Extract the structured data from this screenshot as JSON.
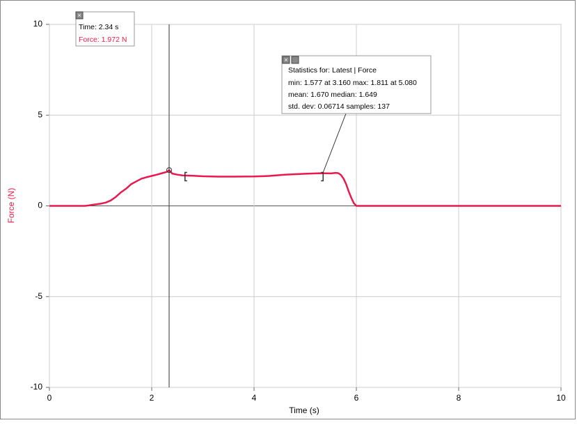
{
  "chart_data": {
    "type": "line",
    "x_label": "Time (s)",
    "y_label": "Force (N)",
    "x": [
      0,
      0.4,
      0.7,
      0.9,
      1.0,
      1.1,
      1.2,
      1.3,
      1.4,
      1.5,
      1.6,
      1.7,
      1.8,
      1.9,
      2.0,
      2.1,
      2.2,
      2.3,
      2.34,
      2.4,
      2.5,
      2.6,
      2.8,
      3.0,
      3.3,
      3.6,
      4.0,
      4.3,
      4.6,
      5.0,
      5.3,
      5.5,
      5.6,
      5.65,
      5.7,
      5.75,
      5.8,
      5.85,
      5.9,
      5.95,
      6.0,
      7.0,
      8.0,
      9.0,
      10.0
    ],
    "series": [
      {
        "color": "#e8194c",
        "values": [
          0,
          0,
          0,
          0.08,
          0.12,
          0.18,
          0.3,
          0.5,
          0.75,
          0.95,
          1.2,
          1.35,
          1.5,
          1.58,
          1.65,
          1.72,
          1.8,
          1.88,
          1.97,
          1.78,
          1.72,
          1.68,
          1.66,
          1.63,
          1.61,
          1.61,
          1.62,
          1.65,
          1.72,
          1.77,
          1.8,
          1.79,
          1.82,
          1.8,
          1.7,
          1.5,
          1.2,
          0.8,
          0.45,
          0.15,
          0,
          0,
          0,
          0,
          0
        ]
      }
    ],
    "xlim": [
      0,
      10
    ],
    "xticks": [
      0,
      2,
      4,
      6,
      8,
      10
    ],
    "ylim": [
      -10,
      10
    ],
    "yticks": [
      -10,
      -5,
      0,
      5,
      10
    ],
    "grid": true,
    "cursor": {
      "x": 2.34,
      "y": 1.972,
      "time_label": "Time: 2.34 s",
      "force_label": "Force: 1.972 N"
    },
    "selection": [
      2.65,
      5.35
    ],
    "statistics": {
      "title": "Statistics for: Latest | Force",
      "lines": [
        "min: 1.577 at 3.160 max: 1.811 at 5.080",
        "mean: 1.670 median: 1.649",
        "std. dev: 0.06714 samples: 137"
      ]
    }
  }
}
